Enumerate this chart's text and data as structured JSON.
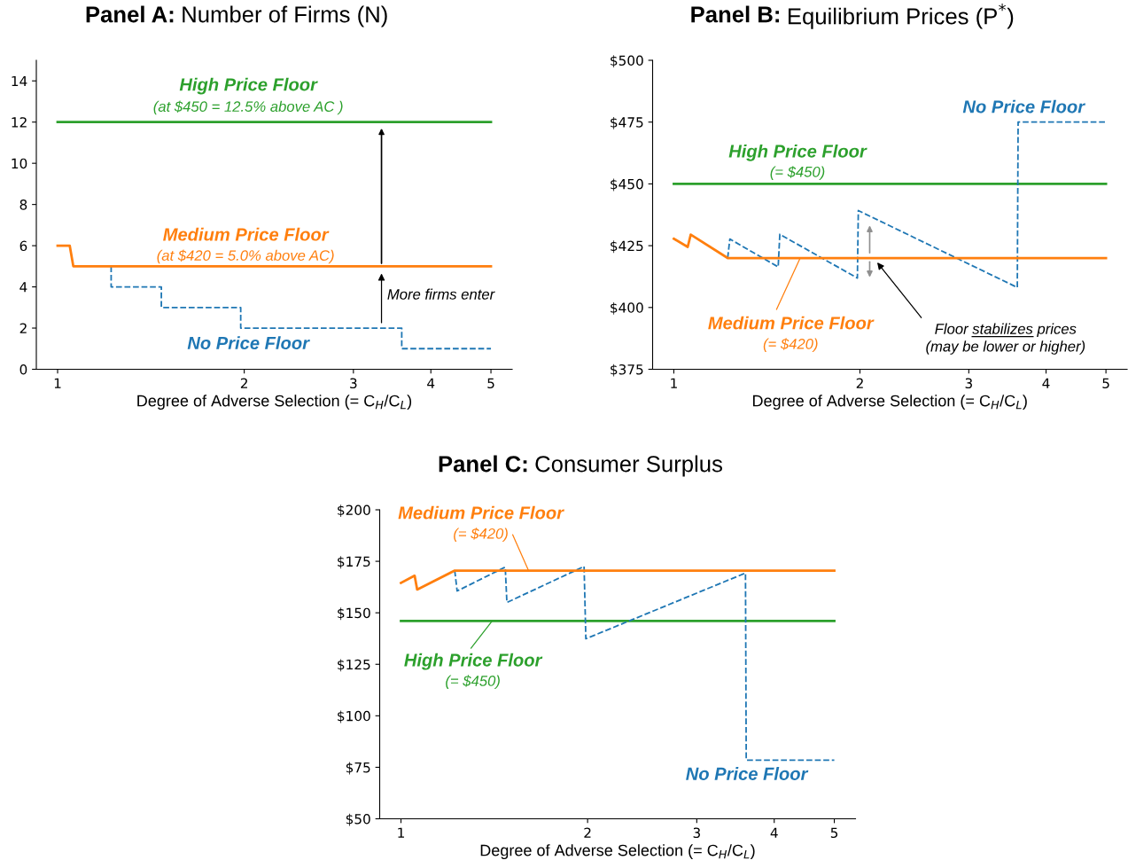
{
  "chart_data": [
    {
      "type": "line",
      "title": "Panel A: Number of Firms (N)",
      "xlabel": "Degree of Adverse Selection (= C$_{H}$/C$_{L}$)",
      "log": "x",
      "xlim": [
        0.924,
        5.41
      ],
      "xticks": [
        1,
        2,
        3,
        4,
        5
      ],
      "ylim": [
        0,
        15
      ],
      "yticks": [
        0,
        2,
        4,
        6,
        8,
        10,
        12,
        14
      ],
      "series": [
        {
          "name": "High Price Floor",
          "color": "#2ca02c",
          "line_style": "solid",
          "x": [
            1,
            5
          ],
          "values": [
            12,
            12
          ]
        },
        {
          "name": "No Price Floor",
          "color": "#1f77b4",
          "line_style": "dashed",
          "x": [
            1.22,
            1.22,
            1.47,
            1.47,
            1.974,
            1.974,
            3.59,
            3.59,
            5
          ],
          "values": [
            5,
            4,
            4,
            3,
            3,
            2,
            2,
            1,
            1
          ]
        },
        {
          "name": "Medium Price Floor",
          "color": "#ff7f0e",
          "line_style": "solid",
          "x": [
            1,
            1.046,
            1.06,
            5
          ],
          "values": [
            6,
            6,
            5,
            5
          ]
        }
      ],
      "annotations": [
        "(at $450 = 12.5% above AC )",
        "(at $420 = 5.0% above AC)",
        "More firms enter"
      ]
    },
    {
      "type": "line",
      "title": "Panel B: Equilibrium Prices (P$^{*}$)",
      "xlabel": "Degree of Adverse Selection (= C$_{H}$/C$_{L}$)",
      "log": "x",
      "xlim": [
        0.924,
        5.41
      ],
      "xticks": [
        1,
        2,
        3,
        4,
        5
      ],
      "ylim": [
        375,
        500
      ],
      "yticks": [
        {
          "value": 375,
          "label": "$375"
        },
        {
          "value": 400,
          "label": "$400"
        },
        {
          "value": 425,
          "label": "$425"
        },
        {
          "value": 450,
          "label": "$450"
        },
        {
          "value": 475,
          "label": "$475"
        },
        {
          "value": 500,
          "label": "$500"
        }
      ],
      "series": [
        {
          "name": "High Price Floor",
          "color": "#2ca02c",
          "line_style": "solid",
          "x": [
            1,
            5
          ],
          "values": [
            450,
            450
          ]
        },
        {
          "name": "No Price Floor",
          "color": "#1f77b4",
          "line_style": "dashed",
          "x": [
            1.222,
            1.232,
            1.475,
            1.484,
            1.981,
            1.988,
            3.594,
            3.605,
            5
          ],
          "values": [
            420,
            427.7,
            416.4,
            429.6,
            411.9,
            439.2,
            408.1,
            475,
            475
          ]
        },
        {
          "name": "Medium Price Floor",
          "color": "#ff7f0e",
          "line_style": "solid",
          "x": [
            1,
            1.053,
            1.065,
            1.222,
            5
          ],
          "values": [
            427.8,
            424.5,
            429.5,
            420,
            420
          ]
        }
      ],
      "annotations": [
        "(= $450)",
        "(= $420)",
        "Floor stabilizes prices\n(may be lower or higher)"
      ]
    },
    {
      "type": "line",
      "title": "Panel C: Consumer Surplus",
      "xlabel": "Degree of Adverse Selection (= C$_{H}$/C$_{L}$)",
      "log": "x",
      "xlim": [
        0.924,
        5.41
      ],
      "xticks": [
        1,
        2,
        3,
        4,
        5
      ],
      "ylim": [
        50,
        200
      ],
      "yticks": [
        {
          "value": 50,
          "label": "$50"
        },
        {
          "value": 75,
          "label": "$75"
        },
        {
          "value": 100,
          "label": "$100"
        },
        {
          "value": 125,
          "label": "$125"
        },
        {
          "value": 150,
          "label": "$150"
        },
        {
          "value": 175,
          "label": "$175"
        },
        {
          "value": 200,
          "label": "$200"
        }
      ],
      "series": [
        {
          "name": "High Price Floor",
          "color": "#2ca02c",
          "line_style": "solid",
          "x": [
            1,
            5
          ],
          "values": [
            146,
            146
          ]
        },
        {
          "name": "No Price Floor",
          "color": "#1f77b4",
          "line_style": "dashed",
          "x": [
            1.221,
            1.232,
            1.473,
            1.482,
            1.974,
            1.987,
            3.595,
            3.605,
            5
          ],
          "values": [
            170.5,
            160.6,
            172.2,
            155,
            172.5,
            137.4,
            169.3,
            78.5,
            78.5
          ]
        },
        {
          "name": "Medium Price Floor",
          "color": "#ff7f0e",
          "line_style": "solid",
          "x": [
            1,
            1.052,
            1.062,
            1.221,
            5
          ],
          "values": [
            164.5,
            168,
            161.3,
            170.5,
            170.5
          ]
        }
      ],
      "annotations": [
        {
          "text": "(= $420)",
          "x": 1.606,
          "y": 170.5
        },
        "(= $450)"
      ]
    }
  ]
}
